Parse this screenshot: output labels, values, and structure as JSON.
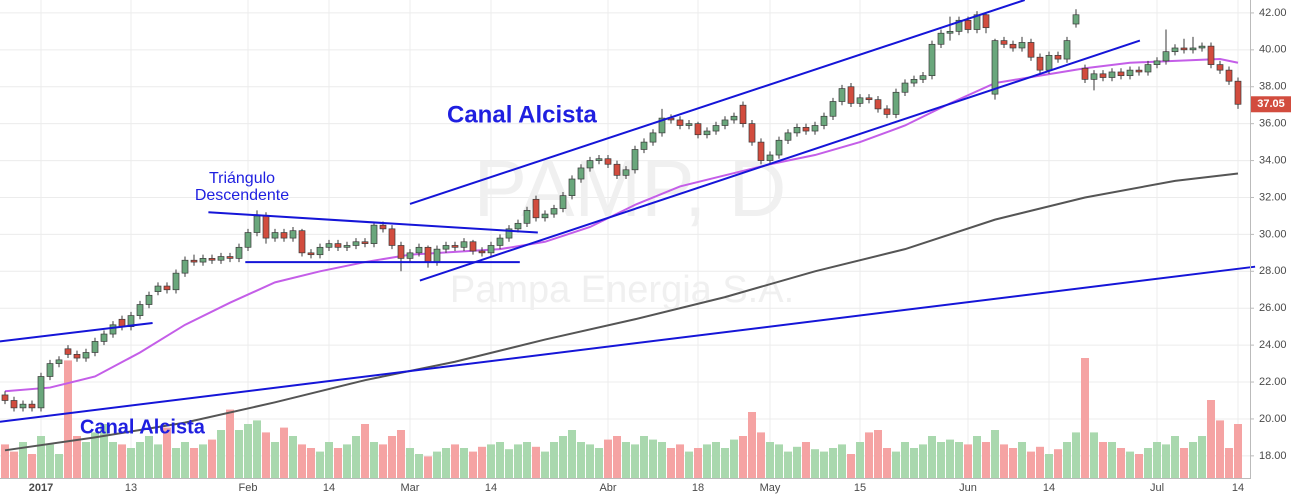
{
  "chart_data": {
    "type": "candlestick",
    "title": "PAMP, D",
    "subtitle": "Pampa Energia S.A.",
    "categories": [
      null,
      null,
      null,
      null,
      "2017",
      null,
      null,
      null,
      null,
      null,
      null,
      null,
      null,
      null,
      "13",
      null,
      null,
      null,
      null,
      null,
      null,
      null,
      null,
      null,
      null,
      null,
      null,
      "Feb",
      null,
      null,
      null,
      null,
      null,
      null,
      null,
      null,
      "14",
      null,
      null,
      null,
      null,
      null,
      null,
      null,
      null,
      "Mar",
      null,
      null,
      null,
      null,
      null,
      null,
      null,
      null,
      "14",
      null,
      null,
      null,
      null,
      null,
      null,
      null,
      null,
      null,
      null,
      null,
      null,
      "Abr",
      null,
      null,
      null,
      null,
      null,
      null,
      null,
      null,
      null,
      "18",
      null,
      null,
      null,
      null,
      null,
      null,
      null,
      "May",
      null,
      null,
      null,
      null,
      null,
      null,
      null,
      null,
      null,
      "15",
      null,
      null,
      null,
      null,
      null,
      null,
      null,
      null,
      null,
      null,
      null,
      "Jun",
      null,
      null,
      null,
      null,
      null,
      null,
      null,
      null,
      "14",
      null,
      null,
      null,
      null,
      null,
      null,
      null,
      null,
      null,
      null,
      null,
      "Jul",
      null,
      null,
      null,
      null,
      null,
      null,
      null,
      null,
      "14"
    ],
    "ohlc": [
      [
        21.3,
        21.5,
        20.8,
        21.0
      ],
      [
        21.0,
        21.2,
        20.4,
        20.6
      ],
      [
        20.6,
        21.0,
        20.4,
        20.8
      ],
      [
        20.8,
        21.0,
        20.4,
        20.6
      ],
      [
        20.6,
        22.5,
        20.4,
        22.3
      ],
      [
        22.3,
        23.2,
        22.1,
        23.0
      ],
      [
        23.0,
        23.4,
        22.8,
        23.2
      ],
      [
        23.8,
        24.0,
        23.3,
        23.5
      ],
      [
        23.5,
        23.7,
        23.1,
        23.3
      ],
      [
        23.3,
        23.8,
        23.1,
        23.6
      ],
      [
        23.6,
        24.4,
        23.4,
        24.2
      ],
      [
        24.2,
        24.8,
        24.0,
        24.6
      ],
      [
        24.6,
        25.3,
        24.4,
        25.1
      ],
      [
        25.4,
        25.6,
        24.8,
        25.0
      ],
      [
        25.0,
        25.8,
        24.8,
        25.6
      ],
      [
        25.6,
        26.4,
        25.4,
        26.2
      ],
      [
        26.2,
        26.9,
        26.0,
        26.7
      ],
      [
        26.9,
        27.4,
        26.7,
        27.2
      ],
      [
        27.2,
        27.4,
        26.8,
        27.0
      ],
      [
        27.0,
        28.1,
        26.8,
        27.9
      ],
      [
        27.9,
        28.8,
        27.7,
        28.6
      ],
      [
        28.6,
        28.9,
        28.3,
        28.5
      ],
      [
        28.5,
        28.9,
        28.3,
        28.7
      ],
      [
        28.7,
        28.9,
        28.4,
        28.6
      ],
      [
        28.6,
        29.0,
        28.4,
        28.8
      ],
      [
        28.8,
        29.0,
        28.5,
        28.7
      ],
      [
        28.7,
        29.5,
        28.5,
        29.3
      ],
      [
        29.3,
        30.3,
        29.1,
        30.1
      ],
      [
        30.1,
        31.3,
        29.9,
        31.0
      ],
      [
        31.0,
        31.2,
        29.5,
        29.8
      ],
      [
        29.8,
        30.3,
        29.6,
        30.1
      ],
      [
        30.1,
        30.3,
        29.6,
        29.8
      ],
      [
        29.8,
        30.4,
        29.6,
        30.2
      ],
      [
        30.2,
        30.3,
        28.8,
        29.0
      ],
      [
        29.0,
        29.2,
        28.7,
        28.9
      ],
      [
        28.9,
        29.5,
        28.7,
        29.3
      ],
      [
        29.3,
        29.7,
        29.1,
        29.5
      ],
      [
        29.5,
        29.7,
        29.1,
        29.3
      ],
      [
        29.3,
        29.6,
        29.1,
        29.4
      ],
      [
        29.4,
        29.8,
        29.2,
        29.6
      ],
      [
        29.6,
        29.8,
        29.3,
        29.5
      ],
      [
        29.5,
        30.7,
        29.3,
        30.5
      ],
      [
        30.5,
        30.7,
        30.1,
        30.3
      ],
      [
        30.3,
        30.5,
        29.2,
        29.4
      ],
      [
        29.4,
        29.6,
        28.0,
        28.7
      ],
      [
        28.7,
        29.2,
        28.5,
        29.0
      ],
      [
        29.0,
        29.5,
        28.8,
        29.3
      ],
      [
        29.3,
        29.4,
        28.2,
        28.5
      ],
      [
        28.5,
        29.4,
        28.3,
        29.2
      ],
      [
        29.2,
        29.6,
        29.0,
        29.4
      ],
      [
        29.4,
        29.6,
        29.1,
        29.3
      ],
      [
        29.3,
        29.8,
        29.1,
        29.6
      ],
      [
        29.6,
        29.7,
        28.9,
        29.1
      ],
      [
        29.1,
        29.3,
        28.8,
        29.0
      ],
      [
        29.0,
        29.6,
        28.8,
        29.4
      ],
      [
        29.4,
        30.0,
        29.2,
        29.8
      ],
      [
        29.8,
        30.5,
        29.6,
        30.3
      ],
      [
        30.3,
        30.8,
        30.1,
        30.6
      ],
      [
        30.6,
        31.5,
        30.4,
        31.3
      ],
      [
        31.9,
        32.1,
        30.7,
        30.9
      ],
      [
        30.9,
        31.3,
        30.7,
        31.1
      ],
      [
        31.1,
        31.6,
        30.9,
        31.4
      ],
      [
        31.4,
        32.3,
        31.2,
        32.1
      ],
      [
        32.1,
        33.2,
        31.9,
        33.0
      ],
      [
        33.0,
        33.8,
        32.8,
        33.6
      ],
      [
        33.6,
        34.2,
        33.4,
        34.0
      ],
      [
        34.0,
        34.3,
        33.8,
        34.1
      ],
      [
        34.1,
        34.3,
        33.6,
        33.8
      ],
      [
        33.8,
        34.0,
        33.0,
        33.2
      ],
      [
        33.2,
        33.7,
        33.0,
        33.5
      ],
      [
        33.5,
        34.8,
        33.3,
        34.6
      ],
      [
        34.6,
        35.2,
        34.4,
        35.0
      ],
      [
        35.0,
        35.7,
        34.8,
        35.5
      ],
      [
        35.5,
        36.8,
        35.3,
        36.3
      ],
      [
        36.3,
        36.5,
        36.0,
        36.2
      ],
      [
        36.2,
        36.4,
        35.7,
        35.9
      ],
      [
        35.9,
        36.2,
        35.7,
        36.0
      ],
      [
        36.0,
        36.1,
        35.2,
        35.4
      ],
      [
        35.4,
        35.8,
        35.2,
        35.6
      ],
      [
        35.6,
        36.1,
        35.4,
        35.9
      ],
      [
        35.9,
        36.4,
        35.7,
        36.2
      ],
      [
        36.2,
        36.6,
        36.0,
        36.4
      ],
      [
        37.0,
        37.2,
        35.8,
        36.0
      ],
      [
        36.0,
        36.2,
        34.8,
        35.0
      ],
      [
        35.0,
        35.2,
        33.8,
        34.0
      ],
      [
        34.0,
        34.5,
        33.8,
        34.3
      ],
      [
        34.3,
        35.3,
        34.1,
        35.1
      ],
      [
        35.1,
        35.7,
        34.9,
        35.5
      ],
      [
        35.5,
        36.0,
        35.3,
        35.8
      ],
      [
        35.8,
        36.0,
        35.4,
        35.6
      ],
      [
        35.6,
        36.1,
        35.4,
        35.9
      ],
      [
        35.9,
        36.6,
        35.7,
        36.4
      ],
      [
        36.4,
        37.4,
        36.2,
        37.2
      ],
      [
        37.2,
        38.1,
        37.0,
        37.9
      ],
      [
        38.0,
        38.2,
        36.9,
        37.1
      ],
      [
        37.1,
        37.6,
        36.9,
        37.4
      ],
      [
        37.4,
        37.6,
        37.1,
        37.3
      ],
      [
        37.3,
        37.5,
        36.6,
        36.8
      ],
      [
        36.8,
        37.0,
        36.3,
        36.5
      ],
      [
        36.5,
        37.9,
        36.3,
        37.7
      ],
      [
        37.7,
        38.4,
        37.5,
        38.2
      ],
      [
        38.2,
        38.6,
        38.0,
        38.4
      ],
      [
        38.4,
        38.8,
        38.2,
        38.6
      ],
      [
        38.6,
        40.5,
        38.4,
        40.3
      ],
      [
        40.3,
        41.1,
        40.1,
        40.9
      ],
      [
        40.9,
        41.8,
        40.5,
        41.0
      ],
      [
        41.0,
        41.8,
        40.8,
        41.6
      ],
      [
        41.6,
        41.8,
        40.9,
        41.1
      ],
      [
        41.1,
        42.1,
        40.9,
        41.9
      ],
      [
        41.9,
        42.0,
        40.9,
        41.2
      ],
      [
        37.6,
        40.6,
        37.3,
        40.5
      ],
      [
        40.5,
        40.7,
        40.1,
        40.3
      ],
      [
        40.3,
        40.5,
        39.9,
        40.1
      ],
      [
        40.1,
        40.7,
        39.9,
        40.4
      ],
      [
        40.4,
        40.6,
        39.4,
        39.6
      ],
      [
        39.6,
        39.8,
        38.7,
        38.9
      ],
      [
        38.9,
        39.9,
        38.7,
        39.7
      ],
      [
        39.7,
        39.9,
        39.3,
        39.5
      ],
      [
        39.5,
        40.7,
        39.3,
        40.5
      ],
      [
        41.4,
        42.2,
        41.2,
        41.9
      ],
      [
        39.0,
        39.2,
        38.2,
        38.4
      ],
      [
        38.4,
        38.9,
        37.8,
        38.7
      ],
      [
        38.7,
        38.9,
        38.3,
        38.5
      ],
      [
        38.5,
        39.0,
        38.3,
        38.8
      ],
      [
        38.8,
        39.0,
        38.4,
        38.6
      ],
      [
        38.6,
        39.1,
        38.4,
        38.9
      ],
      [
        38.9,
        39.1,
        38.6,
        38.8
      ],
      [
        38.8,
        39.4,
        38.6,
        39.2
      ],
      [
        39.2,
        39.6,
        39.0,
        39.4
      ],
      [
        39.4,
        41.1,
        39.2,
        39.9
      ],
      [
        39.9,
        40.3,
        39.7,
        40.1
      ],
      [
        40.1,
        40.6,
        39.8,
        40.0
      ],
      [
        40.0,
        40.7,
        39.8,
        40.1
      ],
      [
        40.1,
        40.4,
        39.9,
        40.2
      ],
      [
        40.2,
        40.4,
        39.0,
        39.2
      ],
      [
        39.2,
        39.4,
        38.7,
        38.9
      ],
      [
        38.9,
        39.1,
        38.1,
        38.3
      ],
      [
        38.3,
        38.5,
        36.8,
        37.05
      ]
    ],
    "volume": [
      28,
      22,
      30,
      20,
      35,
      28,
      20,
      98,
      35,
      30,
      38,
      45,
      30,
      28,
      25,
      30,
      35,
      28,
      42,
      25,
      30,
      25,
      28,
      32,
      40,
      57,
      40,
      45,
      48,
      38,
      30,
      42,
      35,
      28,
      25,
      22,
      30,
      25,
      28,
      35,
      45,
      30,
      28,
      35,
      40,
      25,
      20,
      18,
      22,
      25,
      28,
      25,
      22,
      26,
      28,
      30,
      24,
      28,
      30,
      26,
      22,
      30,
      35,
      40,
      30,
      28,
      25,
      32,
      35,
      30,
      28,
      35,
      32,
      30,
      25,
      28,
      22,
      25,
      28,
      30,
      25,
      32,
      35,
      55,
      38,
      30,
      28,
      22,
      26,
      30,
      24,
      22,
      25,
      28,
      20,
      30,
      38,
      40,
      25,
      22,
      30,
      25,
      28,
      35,
      30,
      32,
      30,
      28,
      35,
      30,
      40,
      28,
      25,
      30,
      22,
      26,
      20,
      24,
      30,
      38,
      100,
      38,
      30,
      30,
      25,
      22,
      20,
      25,
      30,
      28,
      35,
      25,
      30,
      35,
      65,
      48,
      25,
      45
    ],
    "volume_lim": [
      0,
      100
    ],
    "up_color": "#6aa77c",
    "down_color": "#d24c3e",
    "volume_up_color": "#a9d8ae",
    "volume_down_color": "#f5a3a3",
    "moving_averages": [
      {
        "color": "#c45ee8",
        "x": [
          0,
          5,
          10,
          15,
          20,
          25,
          30,
          35,
          40,
          45,
          50,
          55,
          60,
          65,
          70,
          75,
          80,
          85,
          90,
          95,
          100,
          105,
          110,
          115,
          120,
          125,
          130,
          135,
          137
        ],
        "values": [
          21.5,
          21.7,
          22.3,
          23.6,
          25.1,
          26.3,
          27.4,
          28.0,
          28.5,
          28.9,
          29.05,
          29.2,
          29.6,
          30.4,
          31.6,
          32.6,
          33.2,
          33.8,
          34.3,
          35.0,
          35.9,
          37.1,
          38.2,
          38.6,
          39.0,
          39.3,
          39.4,
          39.5,
          39.3
        ]
      },
      {
        "color": "#555555",
        "x": [
          0,
          10,
          20,
          30,
          40,
          50,
          60,
          70,
          80,
          90,
          100,
          110,
          120,
          130,
          137
        ],
        "values": [
          18.3,
          19.0,
          19.8,
          20.9,
          22.1,
          23.1,
          24.3,
          25.4,
          26.6,
          28.0,
          29.2,
          30.8,
          32.0,
          32.9,
          33.3
        ]
      }
    ],
    "trendlines": [
      {
        "x": [
          -0.56,
          16.4
        ],
        "y": [
          24.2,
          25.2
        ]
      },
      {
        "x": [
          -0.56,
          138.9
        ],
        "y": [
          19.85,
          28.25
        ]
      },
      {
        "x": [
          22.6,
          59.2
        ],
        "y": [
          31.2,
          30.1
        ]
      },
      {
        "x": [
          26.7,
          57.2
        ],
        "y": [
          28.5,
          28.5
        ]
      },
      {
        "x": [
          45,
          113.3
        ],
        "y": [
          31.65,
          42.7
        ]
      },
      {
        "x": [
          46.1,
          126.1
        ],
        "y": [
          27.5,
          40.5
        ]
      }
    ],
    "trendline_color": "#1515d8",
    "annotations": [
      "Triángulo",
      "Descendente",
      "Canal Alcista",
      "Canal Alcista"
    ],
    "ylim": [
      16.8,
      42.7
    ],
    "yticks": [
      {
        "value": 18,
        "label": "18.00"
      },
      {
        "value": 20,
        "label": "20.00"
      },
      {
        "value": 22,
        "label": "22.00"
      },
      {
        "value": 24,
        "label": "24.00"
      },
      {
        "value": 26,
        "label": "26.00"
      },
      {
        "value": 28,
        "label": "28.00"
      },
      {
        "value": 30,
        "label": "30.00"
      },
      {
        "value": 32,
        "label": "32.00"
      },
      {
        "value": 34,
        "label": "34.00"
      },
      {
        "value": 36,
        "label": "36.00"
      },
      {
        "value": 38,
        "label": "38.00"
      },
      {
        "value": 40,
        "label": "40.00"
      },
      {
        "value": 42,
        "label": "42.00"
      }
    ],
    "grid": true
  }
}
